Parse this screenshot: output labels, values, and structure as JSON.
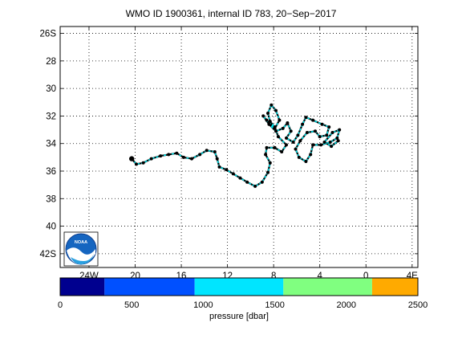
{
  "title": "WMO ID 1900361, internal ID 783, 20−Sep−2017",
  "logo_text": "NOAA",
  "chart_data": {
    "type": "line",
    "title": "WMO ID 1900361, internal ID 783, 20−Sep−2017",
    "x_axis": {
      "range_deg_lon": [
        -26.5,
        4.5
      ],
      "ticks": [
        {
          "value": -24,
          "label": "24W"
        },
        {
          "value": -20,
          "label": "20"
        },
        {
          "value": -16,
          "label": "16"
        },
        {
          "value": -12,
          "label": "12"
        },
        {
          "value": -8,
          "label": "8"
        },
        {
          "value": -4,
          "label": "4"
        },
        {
          "value": 0,
          "label": "0"
        },
        {
          "value": 4,
          "label": "4E"
        }
      ]
    },
    "y_axis": {
      "range_deg_lat": [
        -43,
        -25.5
      ],
      "ticks": [
        {
          "value": -26,
          "label": "26S"
        },
        {
          "value": -28,
          "label": "28"
        },
        {
          "value": -30,
          "label": "30"
        },
        {
          "value": -32,
          "label": "32"
        },
        {
          "value": -34,
          "label": "34"
        },
        {
          "value": -36,
          "label": "36"
        },
        {
          "value": -38,
          "label": "38"
        },
        {
          "value": -40,
          "label": "40"
        },
        {
          "value": -42,
          "label": "42S"
        }
      ]
    },
    "grid": true,
    "track_color": "#00e5ee",
    "marker_color": "#000000",
    "track": [
      [
        -20.3,
        -35.1
      ],
      [
        -19.9,
        -35.5
      ],
      [
        -19.3,
        -35.4
      ],
      [
        -18.6,
        -35.1
      ],
      [
        -17.8,
        -34.9
      ],
      [
        -17.1,
        -34.8
      ],
      [
        -16.4,
        -34.7
      ],
      [
        -15.8,
        -35.0
      ],
      [
        -15.1,
        -35.1
      ],
      [
        -14.4,
        -34.8
      ],
      [
        -13.8,
        -34.5
      ],
      [
        -13.1,
        -34.6
      ],
      [
        -12.9,
        -35.1
      ],
      [
        -12.7,
        -35.7
      ],
      [
        -12.1,
        -35.9
      ],
      [
        -11.5,
        -36.2
      ],
      [
        -10.9,
        -36.5
      ],
      [
        -10.3,
        -36.8
      ],
      [
        -9.6,
        -37.1
      ],
      [
        -9.0,
        -36.8
      ],
      [
        -8.5,
        -36.1
      ],
      [
        -8.3,
        -35.4
      ],
      [
        -8.7,
        -34.8
      ],
      [
        -8.6,
        -34.3
      ],
      [
        -7.9,
        -34.3
      ],
      [
        -7.3,
        -34.6
      ],
      [
        -6.9,
        -34.1
      ],
      [
        -7.6,
        -33.5
      ],
      [
        -7.9,
        -32.8
      ],
      [
        -8.3,
        -32.4
      ],
      [
        -8.5,
        -31.8
      ],
      [
        -8.2,
        -31.2
      ],
      [
        -7.8,
        -31.6
      ],
      [
        -7.5,
        -32.3
      ],
      [
        -7.9,
        -32.9
      ],
      [
        -8.6,
        -32.3
      ],
      [
        -8.9,
        -32.0
      ],
      [
        -8.4,
        -32.6
      ],
      [
        -7.8,
        -33.1
      ],
      [
        -7.2,
        -32.9
      ],
      [
        -6.8,
        -32.5
      ],
      [
        -6.5,
        -33.1
      ],
      [
        -6.9,
        -33.6
      ],
      [
        -6.3,
        -33.9
      ],
      [
        -5.9,
        -33.4
      ],
      [
        -5.5,
        -32.6
      ],
      [
        -5.2,
        -32.1
      ],
      [
        -4.6,
        -32.3
      ],
      [
        -3.8,
        -32.6
      ],
      [
        -3.2,
        -32.8
      ],
      [
        -3.4,
        -33.4
      ],
      [
        -4.0,
        -33.5
      ],
      [
        -4.4,
        -33.1
      ],
      [
        -5.1,
        -33.2
      ],
      [
        -5.7,
        -33.8
      ],
      [
        -6.1,
        -34.4
      ],
      [
        -5.8,
        -35.0
      ],
      [
        -5.2,
        -35.3
      ],
      [
        -4.8,
        -34.8
      ],
      [
        -4.6,
        -34.1
      ],
      [
        -3.9,
        -34.1
      ],
      [
        -3.1,
        -33.9
      ],
      [
        -2.5,
        -33.6
      ],
      [
        -2.3,
        -33.0
      ],
      [
        -2.9,
        -33.2
      ],
      [
        -3.6,
        -33.9
      ],
      [
        -3.0,
        -34.2
      ],
      [
        -2.4,
        -33.8
      ]
    ],
    "colorbar": {
      "label": "pressure [dbar]",
      "range": [
        0,
        2500
      ],
      "tick_labels": [
        "0",
        "500",
        "1000",
        "1500",
        "2000",
        "2500"
      ],
      "segments": [
        {
          "from": 0,
          "to": 310,
          "color": "#00008f"
        },
        {
          "from": 310,
          "to": 940,
          "color": "#0050ff"
        },
        {
          "from": 940,
          "to": 1560,
          "color": "#00e5ff"
        },
        {
          "from": 1560,
          "to": 2180,
          "color": "#80ff80"
        },
        {
          "from": 2180,
          "to": 2500,
          "color": "#ffaa00"
        }
      ]
    }
  }
}
